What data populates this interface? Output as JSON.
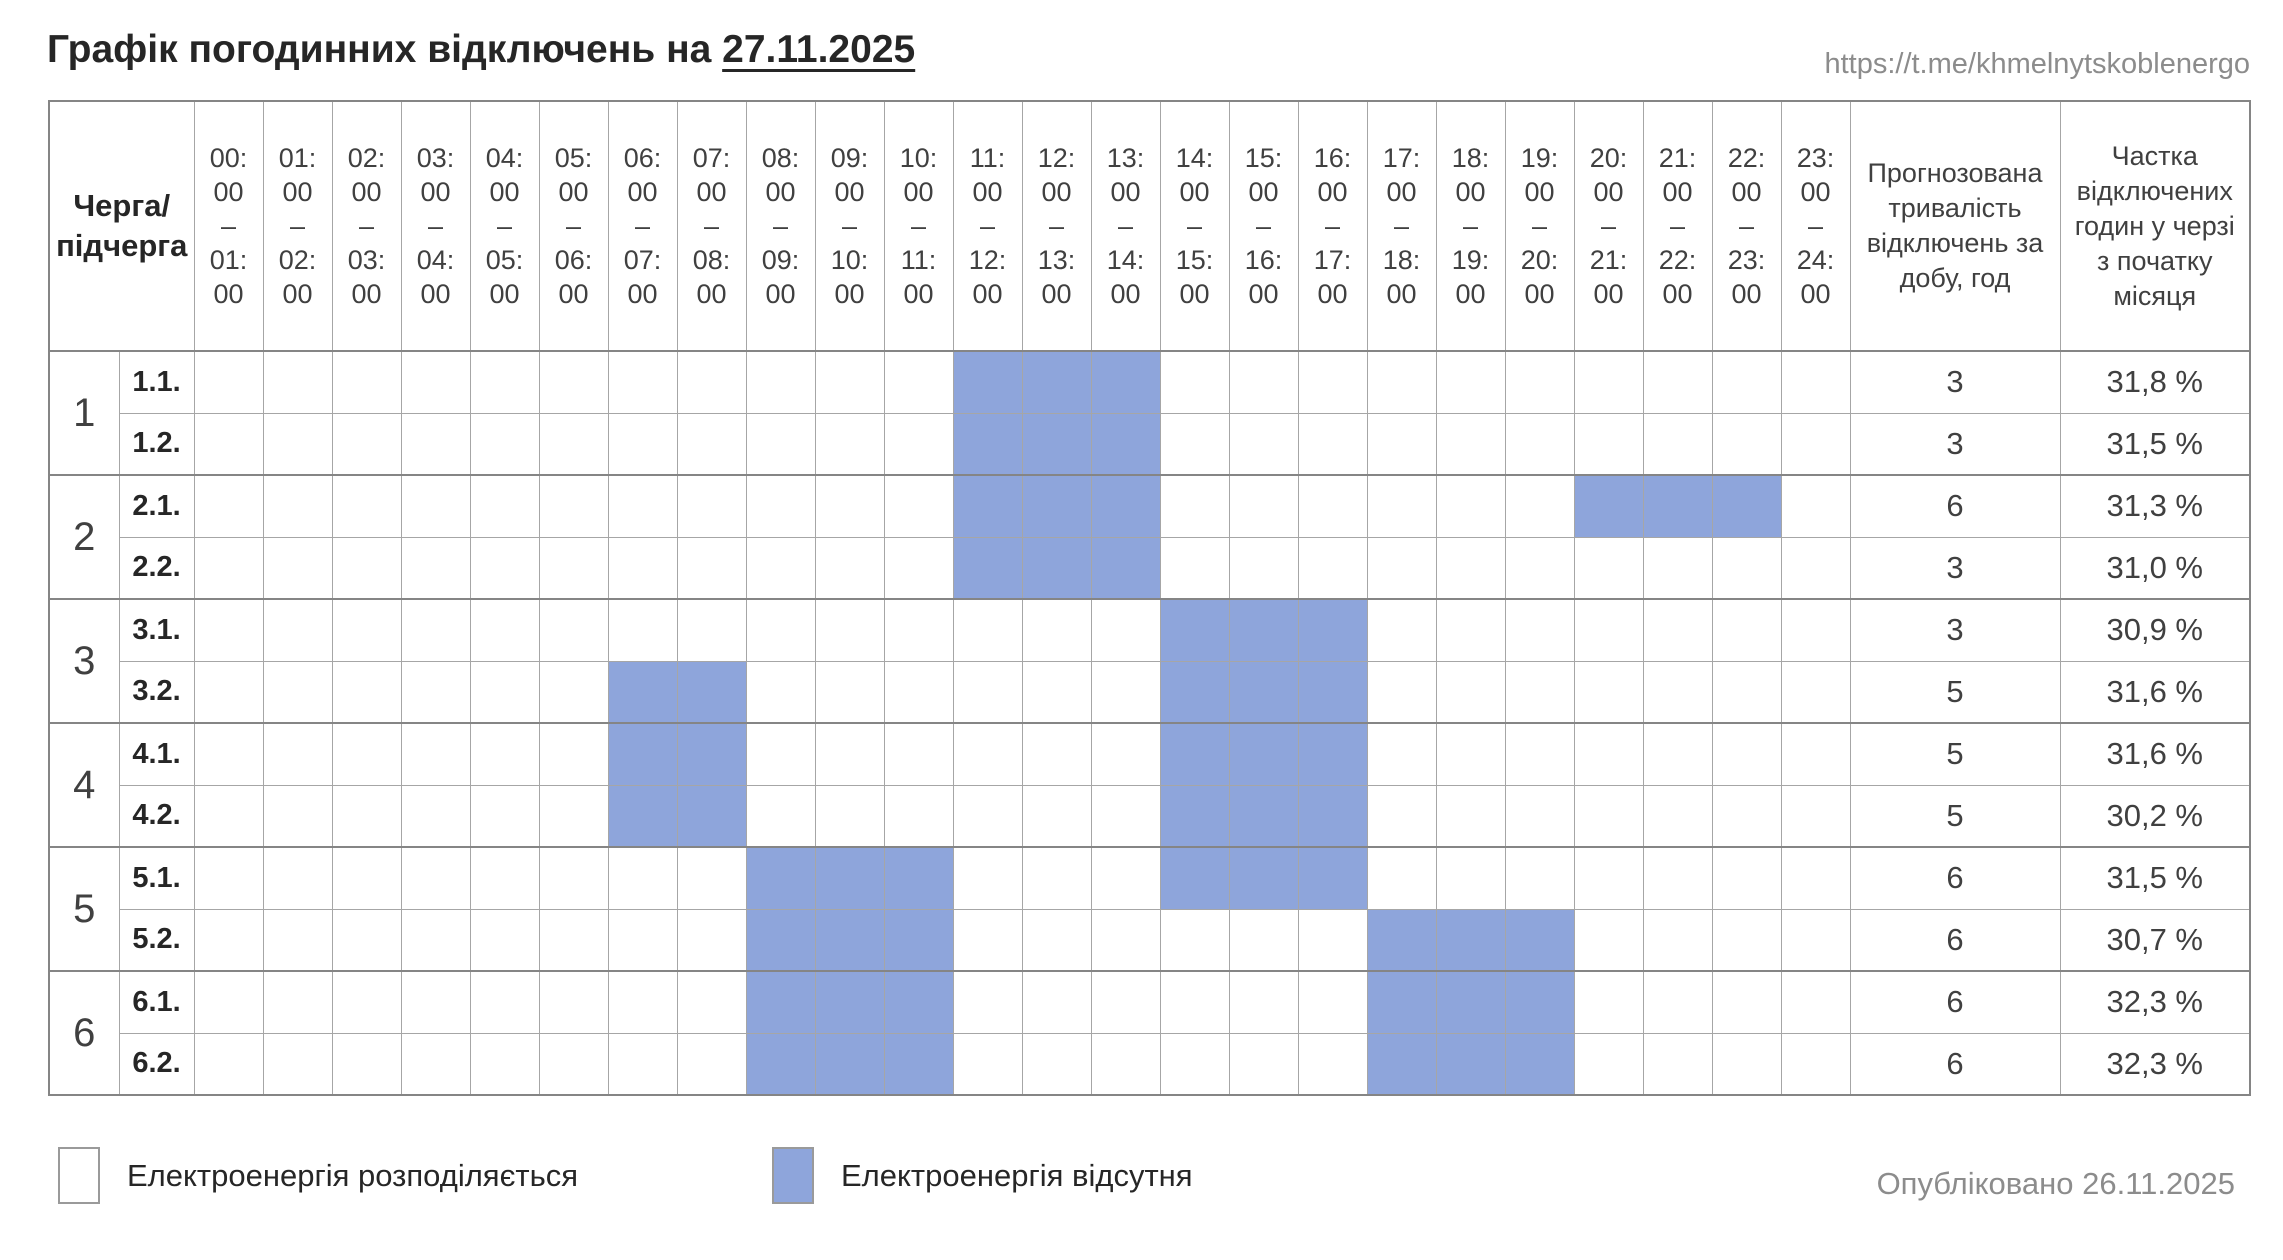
{
  "page": {
    "title_prefix": "Графік погодинних відключень на ",
    "title_date": "27.11.2025",
    "source_url": "https://t.me/khmelnytskoblenergo",
    "published": "Опубліковано 26.11.2025"
  },
  "colors": {
    "outage_fill": "#8EA5DB",
    "grid_line": "#A6A6A6",
    "strong_line": "#858585",
    "body_text": "#404040",
    "muted_text": "#8C8C8C"
  },
  "table": {
    "corner_header": "Черга/\nпідчерга",
    "duration_header": "Прогнозована\nтривалість\nвідключень за\nдобу, год",
    "share_header": "Частка\nвідключених\nгодин у черзі\nз початку\nмісяця",
    "hours": [
      "00:\n00\n–\n01:\n00",
      "01:\n00\n–\n02:\n00",
      "02:\n00\n–\n03:\n00",
      "03:\n00\n–\n04:\n00",
      "04:\n00\n–\n05:\n00",
      "05:\n00\n–\n06:\n00",
      "06:\n00\n–\n07:\n00",
      "07:\n00\n–\n08:\n00",
      "08:\n00\n–\n09:\n00",
      "09:\n00\n–\n10:\n00",
      "10:\n00\n–\n11:\n00",
      "11:\n00\n–\n12:\n00",
      "12:\n00\n–\n13:\n00",
      "13:\n00\n–\n14:\n00",
      "14:\n00\n–\n15:\n00",
      "15:\n00\n–\n16:\n00",
      "16:\n00\n–\n17:\n00",
      "17:\n00\n–\n18:\n00",
      "18:\n00\n–\n19:\n00",
      "19:\n00\n–\n20:\n00",
      "20:\n00\n–\n21:\n00",
      "21:\n00\n–\n22:\n00",
      "22:\n00\n–\n23:\n00",
      "23:\n00\n–\n24:\n00"
    ],
    "groups": [
      {
        "queue": "1",
        "rows": [
          {
            "label": "1.1.",
            "outages": [
              [
                11,
                14
              ]
            ],
            "duration": "3",
            "share": "31,8 %"
          },
          {
            "label": "1.2.",
            "outages": [
              [
                11,
                14
              ]
            ],
            "duration": "3",
            "share": "31,5 %"
          }
        ]
      },
      {
        "queue": "2",
        "rows": [
          {
            "label": "2.1.",
            "outages": [
              [
                11,
                14
              ],
              [
                20,
                23
              ]
            ],
            "duration": "6",
            "share": "31,3 %"
          },
          {
            "label": "2.2.",
            "outages": [
              [
                11,
                14
              ]
            ],
            "duration": "3",
            "share": "31,0 %"
          }
        ]
      },
      {
        "queue": "3",
        "rows": [
          {
            "label": "3.1.",
            "outages": [
              [
                14,
                17
              ]
            ],
            "duration": "3",
            "share": "30,9 %"
          },
          {
            "label": "3.2.",
            "outages": [
              [
                6,
                8
              ],
              [
                14,
                17
              ]
            ],
            "duration": "5",
            "share": "31,6 %"
          }
        ]
      },
      {
        "queue": "4",
        "rows": [
          {
            "label": "4.1.",
            "outages": [
              [
                6,
                8
              ],
              [
                14,
                17
              ]
            ],
            "duration": "5",
            "share": "31,6 %"
          },
          {
            "label": "4.2.",
            "outages": [
              [
                6,
                8
              ],
              [
                14,
                17
              ]
            ],
            "duration": "5",
            "share": "30,2 %"
          }
        ]
      },
      {
        "queue": "5",
        "rows": [
          {
            "label": "5.1.",
            "outages": [
              [
                8,
                11
              ],
              [
                14,
                17
              ]
            ],
            "duration": "6",
            "share": "31,5 %"
          },
          {
            "label": "5.2.",
            "outages": [
              [
                8,
                11
              ],
              [
                17,
                20
              ]
            ],
            "duration": "6",
            "share": "30,7 %"
          }
        ]
      },
      {
        "queue": "6",
        "rows": [
          {
            "label": "6.1.",
            "outages": [
              [
                8,
                11
              ],
              [
                17,
                20
              ]
            ],
            "duration": "6",
            "share": "32,3 %"
          },
          {
            "label": "6.2.",
            "outages": [
              [
                8,
                11
              ],
              [
                17,
                20
              ]
            ],
            "duration": "6",
            "share": "32,3 %"
          }
        ]
      }
    ]
  },
  "legend": {
    "available_label": "Електроенергія розподіляється",
    "outage_label": "Електроенергія відсутня"
  }
}
